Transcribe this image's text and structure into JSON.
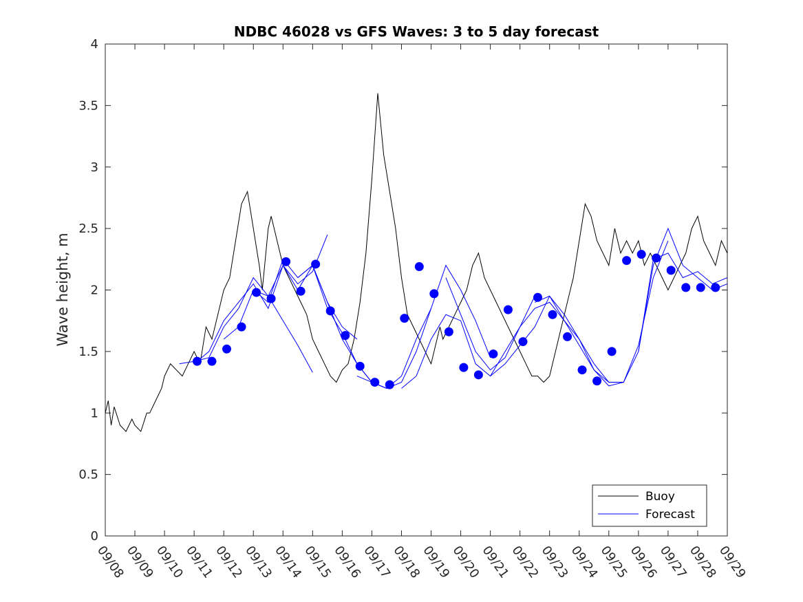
{
  "chart_data": {
    "type": "line",
    "title": "NDBC 46028 vs GFS Waves: 3 to 5 day forecast",
    "xlabel": "",
    "ylabel": "Wave height, m",
    "xlim": [
      0,
      21
    ],
    "ylim": [
      0,
      4
    ],
    "x_tick_labels": [
      "09/08",
      "09/09",
      "09/10",
      "09/11",
      "09/12",
      "09/13",
      "09/14",
      "09/15",
      "09/16",
      "09/17",
      "09/18",
      "09/19",
      "09/20",
      "09/21",
      "09/22",
      "09/23",
      "09/24",
      "09/25",
      "09/26",
      "09/27",
      "09/28",
      "09/29"
    ],
    "y_ticks": [
      0,
      0.5,
      1,
      1.5,
      2,
      2.5,
      3,
      3.5,
      4
    ],
    "y_tick_labels": [
      "0",
      "0.5",
      "1",
      "1.5",
      "2",
      "2.5",
      "3",
      "3.5",
      "4"
    ],
    "legend": {
      "position": "bottom-right",
      "entries": [
        "Buoy",
        "Forecast"
      ]
    },
    "colors": {
      "buoy": "#000000",
      "forecast": "#0000ff"
    },
    "series": [
      {
        "name": "Buoy",
        "x": [
          0,
          0.1,
          0.2,
          0.3,
          0.5,
          0.7,
          0.9,
          1.0,
          1.2,
          1.4,
          1.5,
          1.7,
          1.9,
          2.0,
          2.2,
          2.4,
          2.6,
          2.8,
          3.0,
          3.2,
          3.4,
          3.6,
          3.8,
          4.0,
          4.2,
          4.4,
          4.6,
          4.8,
          5.0,
          5.2,
          5.3,
          5.5,
          5.6,
          5.8,
          6.0,
          6.2,
          6.4,
          6.6,
          6.8,
          7.0,
          7.2,
          7.4,
          7.6,
          7.8,
          8.0,
          8.2,
          8.4,
          8.6,
          8.8,
          9.0,
          9.2,
          9.4,
          9.6,
          9.8,
          10.0,
          10.2,
          10.4,
          10.6,
          10.8,
          11.0,
          11.1,
          11.2,
          11.3,
          11.4,
          11.6,
          11.8,
          12.0,
          12.2,
          12.4,
          12.6,
          12.8,
          13.0,
          13.2,
          13.4,
          13.6,
          13.8,
          14.0,
          14.2,
          14.4,
          14.6,
          14.8,
          15.0,
          15.2,
          15.4,
          15.6,
          15.8,
          16.0,
          16.2,
          16.4,
          16.6,
          16.8,
          17.0,
          17.2,
          17.4,
          17.6,
          17.8,
          18.0,
          18.2,
          18.4,
          18.6,
          18.8,
          19.0,
          19.2,
          19.4,
          19.6,
          19.8,
          20.0,
          20.2,
          20.4,
          20.6,
          20.8,
          21.0
        ],
        "values": [
          1.0,
          1.1,
          0.9,
          1.05,
          0.9,
          0.85,
          0.95,
          0.9,
          0.85,
          1.0,
          1.0,
          1.1,
          1.2,
          1.3,
          1.4,
          1.35,
          1.3,
          1.4,
          1.5,
          1.4,
          1.7,
          1.6,
          1.8,
          2.0,
          2.1,
          2.4,
          2.7,
          2.8,
          2.5,
          2.2,
          2.0,
          2.5,
          2.6,
          2.4,
          2.2,
          2.1,
          2.0,
          1.9,
          1.8,
          1.6,
          1.5,
          1.4,
          1.3,
          1.25,
          1.35,
          1.4,
          1.6,
          1.9,
          2.3,
          2.9,
          3.6,
          3.1,
          2.8,
          2.5,
          2.1,
          1.8,
          1.7,
          1.6,
          1.5,
          1.4,
          1.5,
          1.6,
          1.7,
          1.6,
          1.7,
          1.8,
          1.9,
          2.0,
          2.2,
          2.3,
          2.1,
          2.0,
          1.9,
          1.8,
          1.7,
          1.6,
          1.5,
          1.4,
          1.3,
          1.3,
          1.25,
          1.3,
          1.5,
          1.7,
          1.9,
          2.1,
          2.4,
          2.7,
          2.6,
          2.4,
          2.3,
          2.2,
          2.5,
          2.3,
          2.4,
          2.3,
          2.4,
          2.2,
          2.3,
          2.2,
          2.1,
          2.0,
          2.1,
          2.2,
          2.3,
          2.5,
          2.6,
          2.4,
          2.3,
          2.2,
          2.4,
          2.3
        ]
      },
      {
        "name": "Forecast",
        "runs": [
          {
            "x": [
              2.5,
              3.0,
              3.5,
              4.0,
              4.5,
              5.0,
              5.5,
              6.0,
              6.5,
              7.0
            ],
            "values": [
              1.4,
              1.42,
              1.45,
              1.7,
              1.85,
              2.1,
              1.95,
              1.75,
              1.55,
              1.33
            ]
          },
          {
            "x": [
              3.0,
              3.5,
              4.0,
              4.5,
              5.0,
              5.5,
              6.0,
              6.5,
              7.0,
              7.5
            ],
            "values": [
              1.4,
              1.5,
              1.75,
              1.9,
              2.05,
              1.85,
              2.2,
              2.05,
              2.15,
              2.45
            ]
          },
          {
            "x": [
              4.0,
              4.5,
              5.0,
              5.5,
              6.0,
              6.5,
              7.0,
              7.5,
              8.0,
              8.5
            ],
            "values": [
              1.6,
              1.7,
              2.0,
              1.9,
              2.25,
              2.1,
              2.2,
              1.9,
              1.7,
              1.6
            ]
          },
          {
            "x": [
              5.0,
              5.5,
              6.0,
              6.5,
              7.0,
              7.5,
              8.0,
              8.5,
              9.0,
              9.5
            ],
            "values": [
              2.0,
              1.95,
              2.2,
              2.0,
              2.2,
              1.85,
              1.65,
              1.4,
              1.25,
              1.2
            ]
          },
          {
            "x": [
              6.5,
              7.0,
              7.5,
              8.0,
              8.5,
              9.0,
              9.5,
              10.0,
              10.5,
              11.0
            ],
            "values": [
              2.1,
              2.2,
              1.9,
              1.6,
              1.4,
              1.25,
              1.2,
              1.3,
              1.6,
              1.85
            ]
          },
          {
            "x": [
              8.5,
              9.0,
              9.5,
              10.0,
              10.5,
              11.0,
              11.5,
              12.0,
              12.5,
              13.0
            ],
            "values": [
              1.3,
              1.25,
              1.2,
              1.25,
              1.5,
              1.85,
              2.2,
              2.0,
              1.75,
              1.45
            ]
          },
          {
            "x": [
              10.0,
              10.5,
              11.0,
              11.5,
              12.0,
              12.5,
              13.0,
              13.5,
              14.0,
              14.5
            ],
            "values": [
              1.2,
              1.3,
              1.6,
              1.8,
              1.75,
              1.4,
              1.3,
              1.5,
              1.7,
              1.95
            ]
          },
          {
            "x": [
              11.5,
              12.0,
              12.5,
              13.0,
              13.5,
              14.0,
              14.5,
              15.0,
              15.5,
              16.0
            ],
            "values": [
              2.1,
              1.8,
              1.5,
              1.35,
              1.45,
              1.7,
              1.85,
              1.9,
              1.75,
              1.6
            ]
          },
          {
            "x": [
              13.0,
              13.5,
              14.0,
              14.5,
              15.0,
              15.5,
              16.0,
              16.5,
              17.0,
              17.5
            ],
            "values": [
              1.3,
              1.4,
              1.55,
              1.7,
              1.95,
              1.8,
              1.6,
              1.4,
              1.25,
              1.25
            ]
          },
          {
            "x": [
              14.5,
              15.0,
              15.5,
              16.0,
              16.5,
              17.0,
              17.5,
              18.0,
              18.5,
              19.0
            ],
            "values": [
              1.9,
              1.95,
              1.75,
              1.55,
              1.35,
              1.25,
              1.25,
              1.55,
              2.1,
              2.4
            ]
          },
          {
            "x": [
              16.0,
              16.5,
              17.0,
              17.5,
              18.0,
              18.5,
              19.0,
              19.5,
              20.0,
              20.5,
              21.0
            ],
            "values": [
              1.6,
              1.35,
              1.22,
              1.25,
              1.5,
              2.2,
              2.5,
              2.2,
              2.1,
              2.0,
              2.05
            ]
          },
          {
            "x": [
              18.0,
              18.5,
              19.0,
              19.5,
              20.0,
              20.5,
              21.0
            ],
            "values": [
              1.5,
              2.25,
              2.3,
              2.1,
              2.15,
              2.05,
              2.1
            ]
          }
        ],
        "markers": {
          "x": [
            3.1,
            3.6,
            4.1,
            4.6,
            5.1,
            5.6,
            6.1,
            6.6,
            7.1,
            7.6,
            8.1,
            8.6,
            9.1,
            9.6,
            10.1,
            10.6,
            11.1,
            11.6,
            12.1,
            12.6,
            13.1,
            13.6,
            14.1,
            14.6,
            15.1,
            15.6,
            16.1,
            16.6,
            17.1,
            17.6,
            18.1,
            18.6,
            19.1,
            19.6,
            20.1,
            20.6
          ],
          "values": [
            1.42,
            1.42,
            1.52,
            1.7,
            1.98,
            1.93,
            2.23,
            1.99,
            2.21,
            1.83,
            1.63,
            1.38,
            1.25,
            1.23,
            1.77,
            2.19,
            1.97,
            1.66,
            1.37,
            1.31,
            1.48,
            1.84,
            1.58,
            1.94,
            1.8,
            1.62,
            1.35,
            1.26,
            1.5,
            2.24,
            2.29,
            2.26,
            2.16,
            2.02,
            2.02,
            2.02
          ]
        }
      }
    ]
  }
}
